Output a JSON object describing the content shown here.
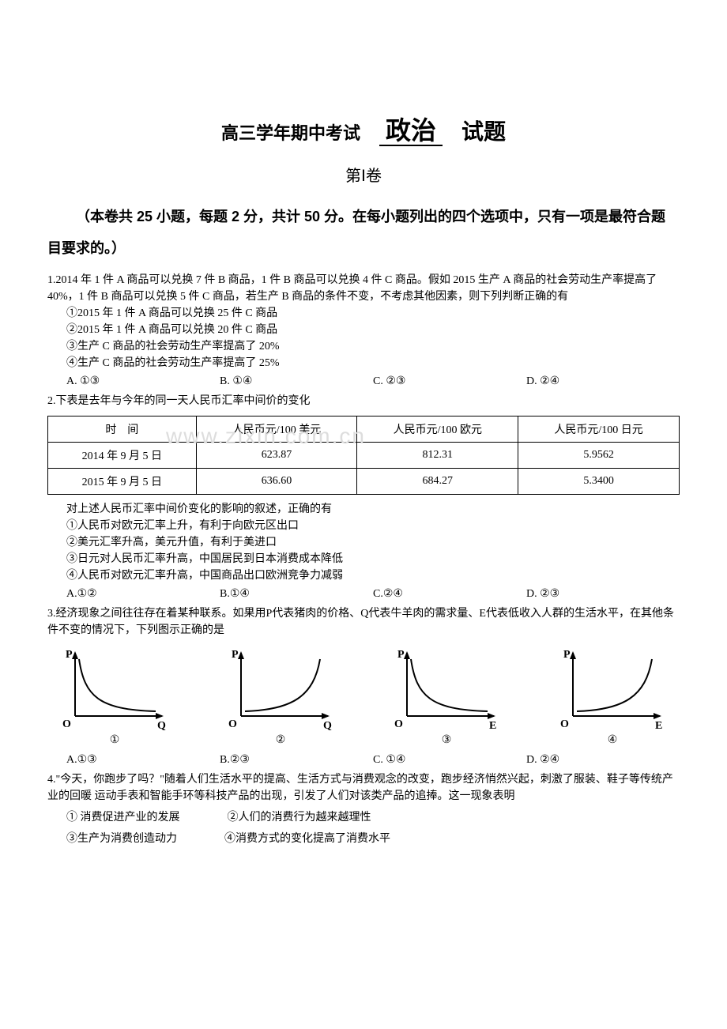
{
  "title": {
    "prefix": "高三学年期中考试",
    "main": "政治",
    "suffix": "试题"
  },
  "section": "第Ⅰ卷",
  "instructions": "（本卷共 25 小题，每题 2 分，共计 50 分。在每小题列出的四个选项中，只有一项是最符合题目要求的。）",
  "q1": {
    "stem": "1.2014 年 1 件 A 商品可以兑换 7 件 B 商品，1 件 B 商品可以兑换 4 件 C 商品。假如 2015 生产 A 商品的社会劳动生产率提高了 40%，1 件 B 商品可以兑换 5 件 C 商品，若生产 B 商品的条件不变，不考虑其他因素，则下列判断正确的有",
    "s1": "①2015 年 1 件 A 商品可以兑换 25 件 C 商品",
    "s2": "②2015 年 1 件 A 商品可以兑换 20 件 C 商品",
    "s3": "③生产 C 商品的社会劳动生产率提高了 20%",
    "s4": "④生产 C 商品的社会劳动生产率提高了 25%",
    "opts": {
      "a": "A. ①③",
      "b": "B. ①④",
      "c": "C. ②③",
      "d": "D. ②④"
    }
  },
  "q2": {
    "stem": "2.下表是去年与今年的同一天人民币汇率中间价的变化",
    "table": {
      "headers": [
        "时　间",
        "人民币元/100 美元",
        "人民币元/100 欧元",
        "人民币元/100 日元"
      ],
      "rows": [
        [
          "2014 年 9 月 5 日",
          "623.87",
          "812.31",
          "5.9562"
        ],
        [
          "2015 年 9 月 5 日",
          "636.60",
          "684.27",
          "5.3400"
        ]
      ]
    },
    "after": "对上述人民币汇率中间价变化的影响的叙述，正确的有",
    "s1": "①人民币对欧元汇率上升，有利于向欧元区出口",
    "s2": "②美元汇率升高，美元升值，有利于美进口",
    "s3": "③日元对人民币汇率升高，中国居民到日本消费成本降低",
    "s4": "④人民币对欧元汇率升高，中国商品出口欧洲竞争力减弱",
    "opts": {
      "a": "A.①②",
      "b": "B.①④",
      "c": "C.②④",
      "d": "D. ②③"
    }
  },
  "q3": {
    "stem": "3.经济现象之间往往存在着某种联系。如果用P代表猪肉的价格、Q代表牛羊肉的需求量、E代表低收入人群的生活水平，在其他条件不变的情况下，下列图示正确的是",
    "charts": {
      "type": "curve-icons",
      "axis_color": "#000000",
      "line_width": 2,
      "items": [
        {
          "label": "①",
          "ylabel": "P",
          "xlabel": "Q",
          "shape": "down"
        },
        {
          "label": "②",
          "ylabel": "P",
          "xlabel": "Q",
          "shape": "up"
        },
        {
          "label": "③",
          "ylabel": "P",
          "xlabel": "E",
          "shape": "down"
        },
        {
          "label": "④",
          "ylabel": "P",
          "xlabel": "E",
          "shape": "up"
        }
      ],
      "width": 150,
      "height": 110
    },
    "opts": {
      "a": "A.①③",
      "b": "B.②③",
      "c": "C. ①④",
      "d": "D. ②④"
    }
  },
  "q4": {
    "stem": "4.\"今天，你跑步了吗？\"随着人们生活水平的提高、生活方式与消费观念的改变，跑步经济悄然兴起，刺激了服装、鞋子等传统产业的回暖 运动手表和智能手环等科技产品的出现，引发了人们对该类产品的追捧。这一现象表明",
    "s1": "① 消费促进产业的发展",
    "s2": "②人们的消费行为越来越理性",
    "s3": "③生产为消费创造动力",
    "s4": "④消费方式的变化提高了消费水平"
  },
  "watermark": "www.zixin.com.cn"
}
